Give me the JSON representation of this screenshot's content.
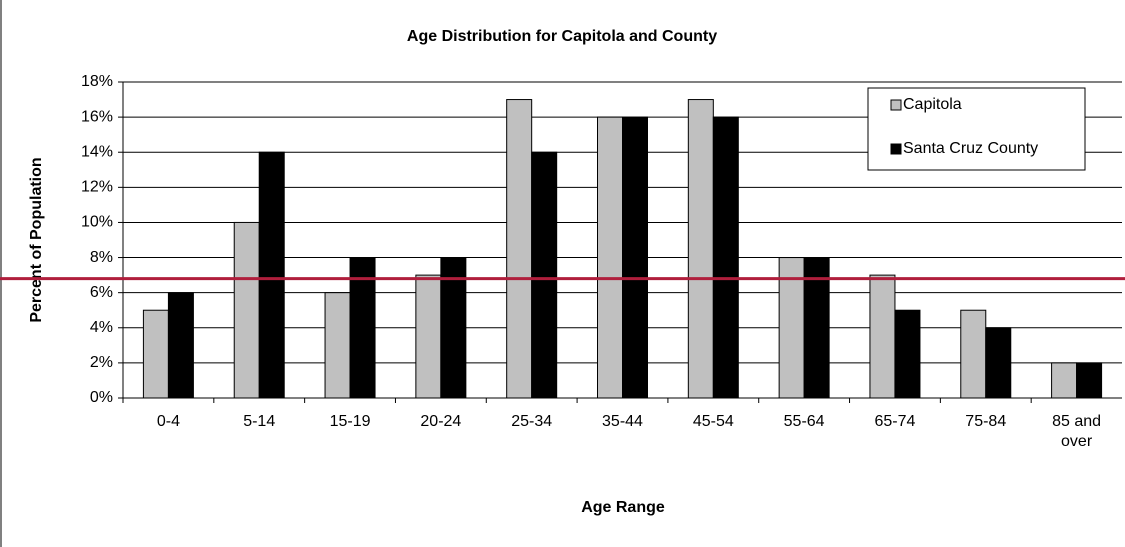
{
  "chart_data": {
    "type": "bar",
    "title": "Age Distribution for Capitola and County",
    "y_label": "Percent of Population",
    "x_label": "Age Range",
    "categories": [
      "0-4",
      "5-14",
      "15-19",
      "20-24",
      "25-34",
      "35-44",
      "45-54",
      "55-64",
      "65-74",
      "75-84",
      "85 and over"
    ],
    "series": [
      {
        "name": "Capitola",
        "color": "#c0c0c0",
        "values": [
          5,
          10,
          6,
          7,
          17,
          16,
          17,
          8,
          7,
          5,
          2
        ]
      },
      {
        "name": "Santa Cruz County",
        "color": "#000000",
        "values": [
          6,
          14,
          8,
          8,
          14,
          16,
          16,
          8,
          5,
          4,
          2
        ]
      }
    ],
    "ylim": [
      0,
      18
    ],
    "yticks": [
      {
        "value": 0,
        "label": "0%"
      },
      {
        "value": 2,
        "label": "2%"
      },
      {
        "value": 4,
        "label": "4%"
      },
      {
        "value": 6,
        "label": "6%"
      },
      {
        "value": 8,
        "label": "8%"
      },
      {
        "value": 10,
        "label": "10%"
      },
      {
        "value": 12,
        "label": "12%"
      },
      {
        "value": 14,
        "label": "14%"
      },
      {
        "value": 16,
        "label": "16%"
      },
      {
        "value": 18,
        "label": "18%"
      }
    ],
    "grid": true,
    "legend": "upper right",
    "reference_line": {
      "value": 6.8,
      "color": "#b01e3c"
    }
  }
}
